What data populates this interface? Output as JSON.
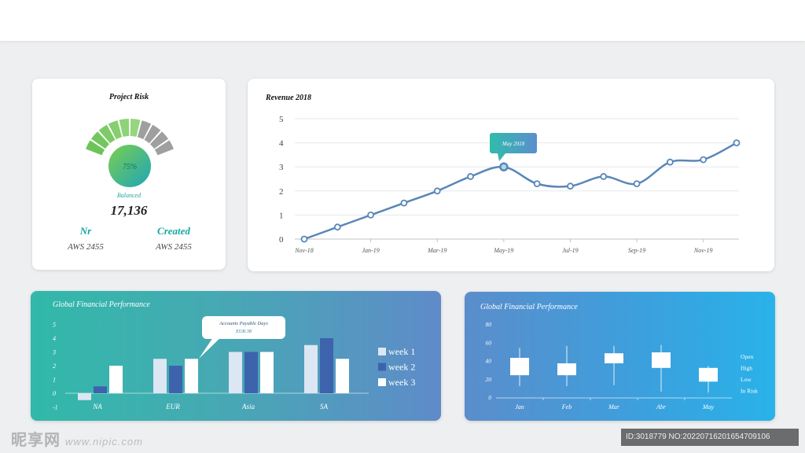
{
  "risk": {
    "title": "Project Risk",
    "percent_label": "75%",
    "percent_value": 0.75,
    "status": "Balanced",
    "total": "17,136",
    "left_label": "Nr",
    "left_value": "AWS 2455",
    "right_label": "Created",
    "right_value": "AWS 2455",
    "colors": {
      "active": "#6ec36a",
      "inactive": "#9f9f9f",
      "accent": "#2aa9a0"
    }
  },
  "revenue": {
    "title": "Revenue 2018",
    "tooltip": "May 2018",
    "chart_data": {
      "type": "line",
      "x": [
        "Nov-18",
        "Dec-18",
        "Jan-19",
        "Feb-19",
        "Mar-19",
        "Apr-19",
        "May-19",
        "Jun-19",
        "Jul-19",
        "Aug-19",
        "Sep-19",
        "Oct-19",
        "Nov-19",
        "Dec-19"
      ],
      "tick_labels": [
        "Nov-18",
        "Jan-19",
        "Mar-19",
        "May-19",
        "Jul-19",
        "Sep-19",
        "Nov-19"
      ],
      "series": [
        {
          "values": [
            0,
            0.5,
            1,
            1.5,
            2,
            2.6,
            3,
            2.3,
            2.2,
            2.6,
            2.3,
            3.2,
            3.3,
            4
          ]
        }
      ],
      "yticks": [
        "0",
        "1",
        "2",
        "3",
        "4",
        "5"
      ],
      "ylim": [
        0,
        5
      ],
      "grid": true,
      "color": "#5a86b8"
    }
  },
  "gfp_bar": {
    "title": "Global Financial Performance",
    "tooltip_title": "Accounts Payable Days",
    "tooltip_value": "EUR:38",
    "legend": [
      "week 1",
      "week 2",
      "week 3"
    ],
    "chart_data": {
      "type": "bar",
      "categories": [
        "NA",
        "EUR",
        "Asia",
        "SA"
      ],
      "series": [
        {
          "name": "week 1",
          "values": [
            -0.5,
            2.5,
            3,
            3.5
          ],
          "color": "#dde6f3"
        },
        {
          "name": "week 2",
          "values": [
            0.5,
            2,
            3,
            4
          ],
          "color": "#3d63ad"
        },
        {
          "name": "week 3",
          "values": [
            2,
            2.5,
            3,
            2.5
          ],
          "color": "#ffffff"
        }
      ],
      "yticks": [
        "-1",
        "0",
        "1",
        "2",
        "3",
        "4",
        "5"
      ],
      "ylim": [
        -1,
        5
      ]
    }
  },
  "gfp_box": {
    "title": "Global Financial Performance",
    "legend": [
      "Open",
      "High",
      "Low",
      "In Risk"
    ],
    "chart_data": {
      "type": "candlestick",
      "categories": [
        "Jan",
        "Feb",
        "Mar",
        "Abr",
        "May"
      ],
      "boxes": [
        {
          "low": 12,
          "q1": 24,
          "q3": 43,
          "high": 54
        },
        {
          "low": 12,
          "q1": 24,
          "q3": 37,
          "high": 56
        },
        {
          "low": 13,
          "q1": 37,
          "q3": 48,
          "high": 56
        },
        {
          "low": 6,
          "q1": 32,
          "q3": 49,
          "high": 57
        },
        {
          "low": 5,
          "q1": 17,
          "q3": 32,
          "high": 34
        }
      ],
      "yticks": [
        "0",
        "20",
        "40",
        "60",
        "80"
      ],
      "ylim": [
        0,
        80
      ]
    }
  },
  "watermark": {
    "brand": "昵享网",
    "url": "www.nipic.com",
    "id_text": "ID:3018779 NO:20220716201654709106"
  }
}
